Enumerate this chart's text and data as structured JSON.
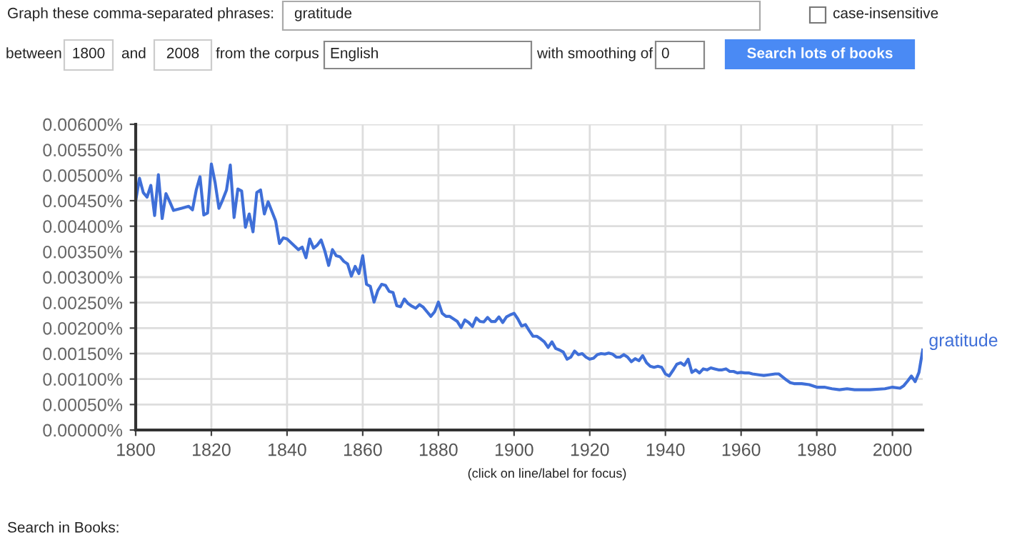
{
  "chart_data": {
    "type": "line",
    "x": [
      1800,
      1801,
      1802,
      1803,
      1804,
      1805,
      1806,
      1807,
      1808,
      1809,
      1810,
      1812,
      1814,
      1815,
      1816,
      1817,
      1818,
      1819,
      1820,
      1821,
      1822,
      1823,
      1824,
      1825,
      1826,
      1827,
      1828,
      1829,
      1830,
      1831,
      1832,
      1833,
      1834,
      1835,
      1836,
      1837,
      1838,
      1839,
      1840,
      1841,
      1842,
      1843,
      1844,
      1845,
      1846,
      1847,
      1848,
      1849,
      1850,
      1851,
      1852,
      1853,
      1854,
      1855,
      1856,
      1857,
      1858,
      1859,
      1860,
      1861,
      1862,
      1863,
      1864,
      1865,
      1866,
      1867,
      1868,
      1869,
      1870,
      1871,
      1872,
      1873,
      1874,
      1875,
      1876,
      1877,
      1878,
      1879,
      1880,
      1881,
      1882,
      1883,
      1884,
      1885,
      1886,
      1887,
      1888,
      1889,
      1890,
      1891,
      1892,
      1893,
      1894,
      1895,
      1896,
      1897,
      1898,
      1899,
      1900,
      1901,
      1902,
      1903,
      1904,
      1905,
      1906,
      1907,
      1908,
      1909,
      1910,
      1911,
      1912,
      1913,
      1914,
      1915,
      1916,
      1917,
      1918,
      1919,
      1920,
      1921,
      1922,
      1923,
      1924,
      1925,
      1926,
      1927,
      1928,
      1929,
      1930,
      1931,
      1932,
      1933,
      1934,
      1935,
      1936,
      1937,
      1938,
      1939,
      1940,
      1941,
      1942,
      1943,
      1944,
      1945,
      1946,
      1947,
      1948,
      1949,
      1950,
      1951,
      1952,
      1953,
      1954,
      1955,
      1956,
      1957,
      1958,
      1959,
      1960,
      1961,
      1962,
      1963,
      1964,
      1965,
      1966,
      1967,
      1968,
      1969,
      1970,
      1971,
      1972,
      1973,
      1974,
      1976,
      1978,
      1980,
      1982,
      1984,
      1986,
      1988,
      1990,
      1994,
      1998,
      2000,
      2002,
      2003,
      2004,
      2005,
      2006,
      2007,
      2008
    ],
    "series": [
      {
        "name": "gratitude",
        "color": "#3f6fd8",
        "values": [
          0.0045,
          0.00494,
          0.00466,
          0.00457,
          0.0048,
          0.00421,
          0.00501,
          0.00415,
          0.00464,
          0.00448,
          0.00431,
          0.00435,
          0.00439,
          0.00432,
          0.00471,
          0.00497,
          0.00422,
          0.00426,
          0.00522,
          0.00485,
          0.00435,
          0.00452,
          0.00471,
          0.0052,
          0.00417,
          0.00473,
          0.00469,
          0.00398,
          0.00424,
          0.00389,
          0.00466,
          0.00471,
          0.00424,
          0.00448,
          0.00429,
          0.0041,
          0.00366,
          0.00377,
          0.00375,
          0.00368,
          0.00361,
          0.00354,
          0.00359,
          0.00338,
          0.00375,
          0.00357,
          0.00363,
          0.00373,
          0.00351,
          0.00323,
          0.00354,
          0.00342,
          0.0034,
          0.00331,
          0.00326,
          0.00302,
          0.00321,
          0.00307,
          0.00342,
          0.00286,
          0.00282,
          0.00251,
          0.00274,
          0.00286,
          0.00284,
          0.00272,
          0.0027,
          0.00244,
          0.00242,
          0.00257,
          0.00248,
          0.00243,
          0.00239,
          0.00246,
          0.00241,
          0.00232,
          0.00223,
          0.00232,
          0.00251,
          0.00229,
          0.00223,
          0.00223,
          0.00218,
          0.00213,
          0.00201,
          0.00216,
          0.00211,
          0.00203,
          0.0022,
          0.00213,
          0.00212,
          0.00221,
          0.00213,
          0.00213,
          0.00222,
          0.00211,
          0.00222,
          0.00226,
          0.00229,
          0.00218,
          0.00204,
          0.00207,
          0.00195,
          0.00184,
          0.00184,
          0.00179,
          0.00173,
          0.00162,
          0.00173,
          0.0016,
          0.00157,
          0.00153,
          0.00139,
          0.00143,
          0.00155,
          0.00148,
          0.0015,
          0.00143,
          0.00139,
          0.00141,
          0.00148,
          0.0015,
          0.00149,
          0.00151,
          0.00149,
          0.00143,
          0.00143,
          0.00148,
          0.00143,
          0.00134,
          0.0014,
          0.00136,
          0.00146,
          0.00132,
          0.00125,
          0.00123,
          0.00125,
          0.00123,
          0.0011,
          0.00106,
          0.00117,
          0.00129,
          0.00132,
          0.00127,
          0.00139,
          0.00113,
          0.00118,
          0.00112,
          0.0012,
          0.00118,
          0.00122,
          0.0012,
          0.00118,
          0.00118,
          0.0012,
          0.00115,
          0.00115,
          0.00112,
          0.00113,
          0.00112,
          0.00112,
          0.0011,
          0.00109,
          0.00108,
          0.00107,
          0.00108,
          0.00109,
          0.0011,
          0.0011,
          0.00104,
          0.00098,
          0.00093,
          0.00091,
          0.00091,
          0.00089,
          0.00084,
          0.00084,
          0.00081,
          0.00079,
          0.00081,
          0.00079,
          0.00079,
          0.00081,
          0.00084,
          0.00082,
          0.00087,
          0.00096,
          0.00106,
          0.00095,
          0.00113,
          0.00157
        ]
      }
    ],
    "xlim": [
      1800,
      2008
    ],
    "xticks": [
      1800,
      1820,
      1840,
      1860,
      1880,
      1900,
      1920,
      1940,
      1960,
      1980,
      2000
    ],
    "ylim": [
      0,
      0.006
    ],
    "yticks": [
      {
        "value": 0,
        "label": "0.00000%"
      },
      {
        "value": 0.0005,
        "label": "0.00050%"
      },
      {
        "value": 0.001,
        "label": "0.00100%"
      },
      {
        "value": 0.0015,
        "label": "0.00150%"
      },
      {
        "value": 0.002,
        "label": "0.00200%"
      },
      {
        "value": 0.0025,
        "label": "0.00250%"
      },
      {
        "value": 0.003,
        "label": "0.00300%"
      },
      {
        "value": 0.0035,
        "label": "0.00350%"
      },
      {
        "value": 0.004,
        "label": "0.00400%"
      },
      {
        "value": 0.0045,
        "label": "0.00450%"
      },
      {
        "value": 0.005,
        "label": "0.00500%"
      },
      {
        "value": 0.0055,
        "label": "0.00550%"
      },
      {
        "value": 0.006,
        "label": "0.00600%"
      }
    ],
    "grid": true,
    "marker": "none",
    "line_style": "solid",
    "legend": false,
    "annotations": [
      "Graph these comma-separated phrases:",
      "gratitude",
      "case-insensitive",
      "between",
      "1800",
      "and",
      "2008",
      "from the corpus",
      "English",
      "with smoothing of",
      "0",
      "Search lots of books",
      "(click on line/label for focus)",
      "Search in Books:"
    ]
  }
}
